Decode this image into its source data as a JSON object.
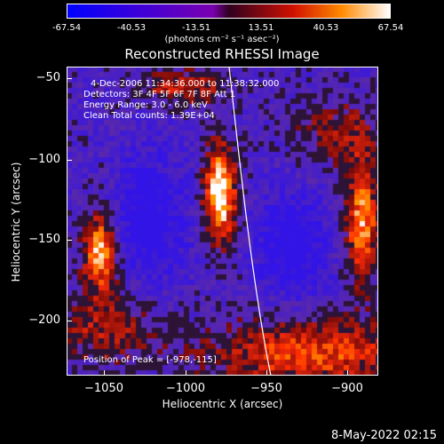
{
  "colorbar": {
    "ticks": [
      "-67.54",
      "-40.53",
      "-13.51",
      "13.51",
      "40.53",
      "67.54"
    ],
    "units": "(photons cm⁻² s⁻¹ asec⁻²)"
  },
  "title": "Reconstructed RHESSI Image",
  "info": {
    "time": "4-Dec-2006 11:34:36.000 to 11:38:32.000",
    "detectors": "Detectors: 3F 4F 5F 6F 7F 8F Att 1",
    "energy": "Energy Range: 3.0 - 6.0 keV",
    "clean": "Clean     Total counts: 1.39E+04",
    "peak": "Position of Peak = [-978,-115]"
  },
  "axes": {
    "xlabel": "Heliocentric X (arcsec)",
    "ylabel": "Heliocentric Y (arcsec)",
    "xticks": [
      "−1050",
      "−1000",
      "−950",
      "−900"
    ],
    "yticks": [
      "−50",
      "−100",
      "−150",
      "−200"
    ],
    "x_values": [
      -1050,
      -1000,
      -950,
      -900
    ],
    "y_values": [
      -50,
      -100,
      -150,
      -200
    ],
    "xlim": [
      -1072,
      -882
    ],
    "ylim": [
      -232,
      -43
    ]
  },
  "datestamp": "8-May-2022 02:15"
}
